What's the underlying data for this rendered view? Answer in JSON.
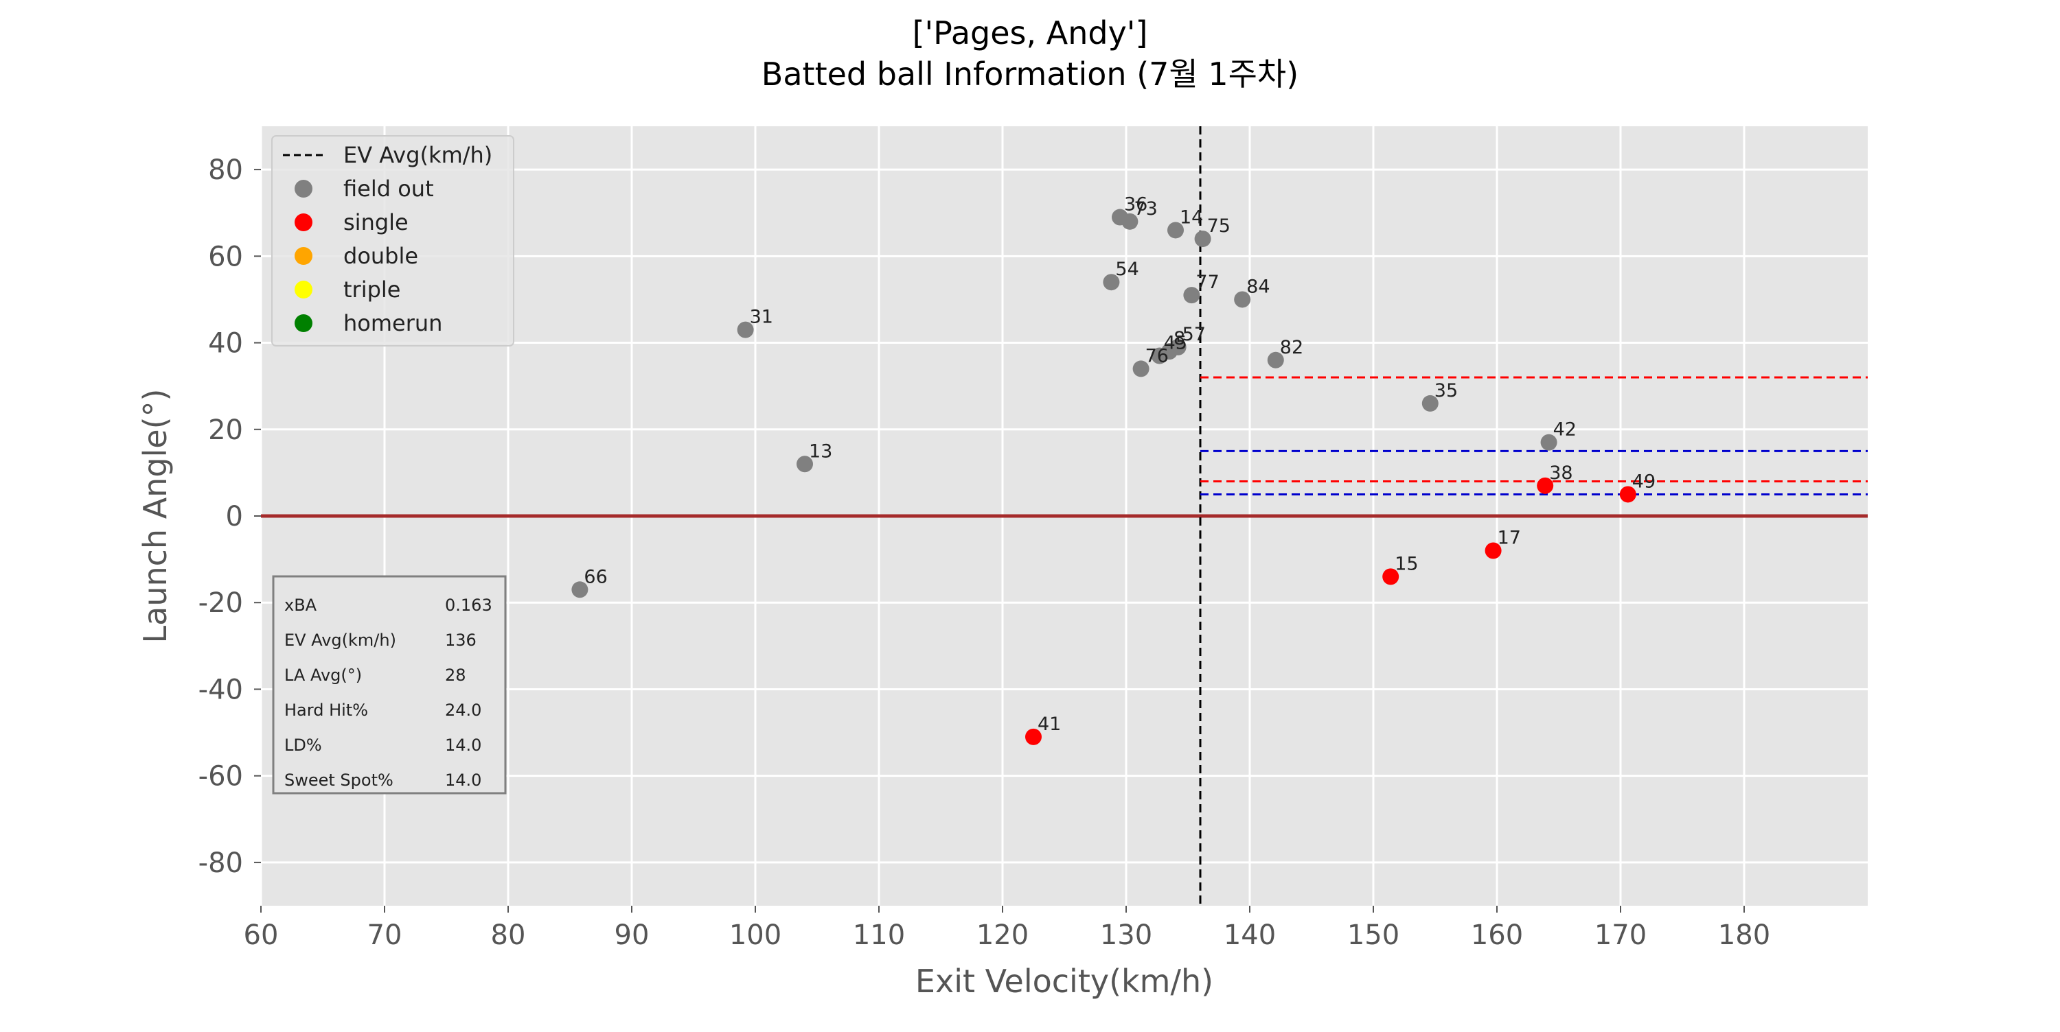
{
  "chart_data": {
    "type": "scatter",
    "title": "['Pages, Andy']",
    "subtitle": "Batted ball Information (7월 1주차)",
    "xlabel": "Exit Velocity(km/h)",
    "ylabel": "Launch Angle(°)",
    "xlim": [
      60,
      190
    ],
    "ylim": [
      -90,
      90
    ],
    "xticks": [
      60,
      70,
      80,
      90,
      100,
      110,
      120,
      130,
      140,
      150,
      160,
      170,
      180
    ],
    "yticks": [
      -80,
      -60,
      -40,
      -20,
      0,
      20,
      40,
      60,
      80
    ],
    "grid": true,
    "legend_position": "top-left",
    "legend": [
      {
        "label": "EV Avg(km/h)",
        "kind": "dashed-line",
        "color": "#000000"
      },
      {
        "label": "field out",
        "kind": "marker",
        "color": "#808080"
      },
      {
        "label": "single",
        "kind": "marker",
        "color": "#ff0000"
      },
      {
        "label": "double",
        "kind": "marker",
        "color": "#ffa500"
      },
      {
        "label": "triple",
        "kind": "marker",
        "color": "#ffff00"
      },
      {
        "label": "homerun",
        "kind": "marker",
        "color": "#008000"
      }
    ],
    "colors": {
      "field out": "#808080",
      "single": "#ff0000",
      "double": "#ffa500",
      "triple": "#ffff00",
      "homerun": "#008000"
    },
    "points": [
      {
        "label": "36",
        "x": 129.5,
        "y": 69,
        "result": "field out"
      },
      {
        "label": "73",
        "x": 130.3,
        "y": 68,
        "result": "field out"
      },
      {
        "label": "14",
        "x": 134.0,
        "y": 66,
        "result": "field out"
      },
      {
        "label": "75",
        "x": 136.2,
        "y": 64,
        "result": "field out"
      },
      {
        "label": "54",
        "x": 128.8,
        "y": 54,
        "result": "field out"
      },
      {
        "label": "77",
        "x": 135.3,
        "y": 51,
        "result": "field out"
      },
      {
        "label": "84",
        "x": 139.4,
        "y": 50,
        "result": "field out"
      },
      {
        "label": "31",
        "x": 99.2,
        "y": 43,
        "result": "field out"
      },
      {
        "label": "57",
        "x": 134.2,
        "y": 39,
        "result": "field out"
      },
      {
        "label": "8",
        "x": 133.5,
        "y": 38,
        "result": "field out"
      },
      {
        "label": "45",
        "x": 132.7,
        "y": 37,
        "result": "field out"
      },
      {
        "label": "82",
        "x": 142.1,
        "y": 36,
        "result": "field out"
      },
      {
        "label": "76",
        "x": 131.2,
        "y": 34,
        "result": "field out"
      },
      {
        "label": "35",
        "x": 154.6,
        "y": 26,
        "result": "field out"
      },
      {
        "label": "42",
        "x": 164.2,
        "y": 17,
        "result": "field out"
      },
      {
        "label": "13",
        "x": 104.0,
        "y": 12,
        "result": "field out"
      },
      {
        "label": "66",
        "x": 85.8,
        "y": -17,
        "result": "field out"
      },
      {
        "label": "38",
        "x": 163.9,
        "y": 7,
        "result": "single"
      },
      {
        "label": "49",
        "x": 170.6,
        "y": 5,
        "result": "single"
      },
      {
        "label": "17",
        "x": 159.7,
        "y": -8,
        "result": "single"
      },
      {
        "label": "15",
        "x": 151.4,
        "y": -14,
        "result": "single"
      },
      {
        "label": "41",
        "x": 122.5,
        "y": -51,
        "result": "single"
      }
    ],
    "reference_lines": [
      {
        "kind": "horizontal",
        "y": 0,
        "color": "#a52a2a",
        "style": "solid"
      },
      {
        "kind": "vertical",
        "x": 136,
        "color": "#000000",
        "style": "dashed"
      },
      {
        "kind": "horizontal",
        "y": 32,
        "x_from": 136,
        "color": "#ff0000",
        "style": "dashed"
      },
      {
        "kind": "horizontal",
        "y": 8,
        "x_from": 136,
        "color": "#ff0000",
        "style": "dashed"
      },
      {
        "kind": "horizontal",
        "y": 15,
        "x_from": 136,
        "color": "#0000cd",
        "style": "dashed"
      },
      {
        "kind": "horizontal",
        "y": 5,
        "x_from": 136,
        "color": "#0000cd",
        "style": "dashed"
      }
    ],
    "stats_table": [
      {
        "name": "xBA",
        "value": "0.163"
      },
      {
        "name": "EV Avg(km/h)",
        "value": "136"
      },
      {
        "name": "LA Avg(°)",
        "value": "28"
      },
      {
        "name": "Hard Hit%",
        "value": "24.0"
      },
      {
        "name": "LD%",
        "value": "14.0"
      },
      {
        "name": "Sweet Spot%",
        "value": "14.0"
      }
    ]
  }
}
